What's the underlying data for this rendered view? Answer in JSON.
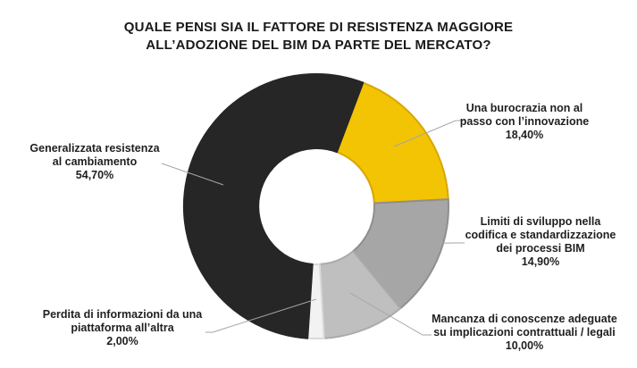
{
  "chart_data": {
    "type": "donut",
    "title": "QUALE PENSI SIA IL FATTORE DI RESISTENZA MAGGIORE ALL’ADOZIONE DEL BIM DA PARTE DEL MERCATO?",
    "title_lines": [
      "QUALE PENSI SIA IL FATTORE DI RESISTENZA MAGGIORE",
      "ALL’ADOZIONE DEL BIM DA PARTE DEL MERCATO?"
    ],
    "rotation_deg": 20.7,
    "legend": "none",
    "background": "#FFFFFF",
    "text_color": "#1F1F1F",
    "leader_line_color": "#A6A6A6",
    "slices": [
      {
        "name": "Una burocrazia non al passo con l’innovazione",
        "value_pct": 18.4,
        "value_label": "18,40%",
        "color": "#F2C403",
        "border_color": "#D9A602",
        "label_lines": [
          "Una burocrazia non al",
          "passo con l’innovazione",
          "18,40%"
        ]
      },
      {
        "name": "Limiti di sviluppo nella codifica e standardizzazione dei processi BIM",
        "value_pct": 14.9,
        "value_label": "14,90%",
        "color": "#A6A6A6",
        "border_color": "#8F8F8F",
        "label_lines": [
          "Limiti di sviluppo nella",
          "codifica e standardizzazione",
          "dei processi BIM",
          "14,90%"
        ]
      },
      {
        "name": "Mancanza di conoscenze adeguate su implicazioni contrattuali / legali",
        "value_pct": 10.0,
        "value_label": "10,00%",
        "color": "#BFBFBF",
        "border_color": "#ABABAB",
        "label_lines": [
          "Mancanza di conoscenze adeguate",
          "su implicazioni contrattuali / legali",
          "10,00%"
        ]
      },
      {
        "name": "Perdita di informazioni da una piattaforma all’altra",
        "value_pct": 2.0,
        "value_label": "2,00%",
        "color": "#F2F2F2",
        "border_color": "#D9D9D9",
        "label_lines": [
          "Perdita di informazioni da una",
          "piattaforma all’altra",
          "2,00%"
        ]
      },
      {
        "name": "Generalizzata resistenza al cambiamento",
        "value_pct": 54.7,
        "value_label": "54,70%",
        "color": "#262626",
        "border_color": "#262626",
        "label_lines": [
          "Generalizzata resistenza",
          "al cambiamento",
          "54,70%"
        ]
      }
    ]
  }
}
